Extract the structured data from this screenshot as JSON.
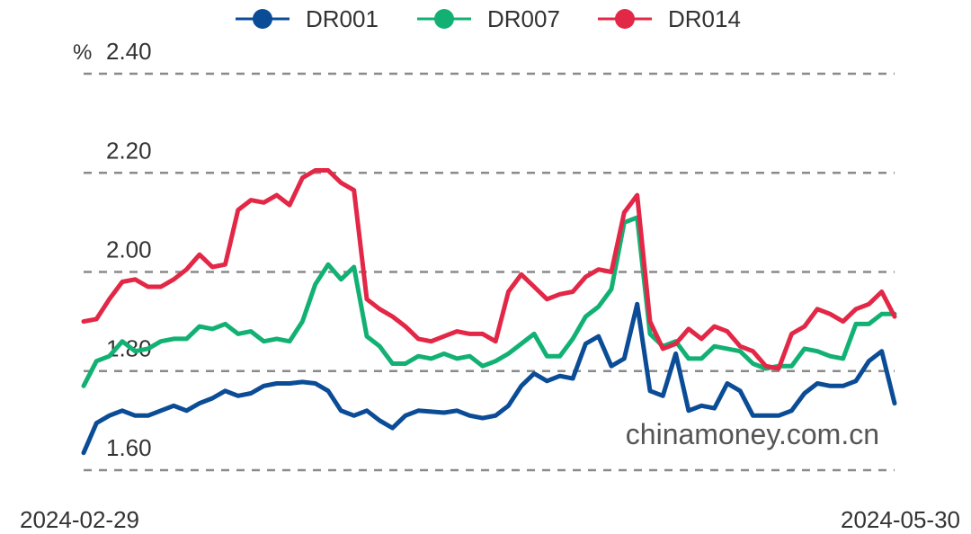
{
  "chart_data": {
    "type": "line",
    "unit": "%",
    "ylim": [
      1.56,
      2.44
    ],
    "y_ticks": [
      "1.60",
      "1.80",
      "2.00",
      "2.20",
      "2.40"
    ],
    "x_tick_labels": [
      "2024-02-29",
      "2024-05-30"
    ],
    "x_start": "2024-02-29",
    "x_end": "2024-05-30",
    "grid": true,
    "legend_position": "top-center",
    "watermark": "chinamoney.com.cn",
    "series": [
      {
        "name": "DR001",
        "color": "#0b4c97",
        "values": [
          1.635,
          1.695,
          1.71,
          1.72,
          1.71,
          1.71,
          1.72,
          1.73,
          1.72,
          1.735,
          1.745,
          1.76,
          1.75,
          1.755,
          1.77,
          1.775,
          1.775,
          1.778,
          1.775,
          1.76,
          1.72,
          1.71,
          1.72,
          1.7,
          1.685,
          1.71,
          1.72,
          1.718,
          1.716,
          1.72,
          1.71,
          1.705,
          1.71,
          1.73,
          1.77,
          1.795,
          1.78,
          1.79,
          1.785,
          1.855,
          1.87,
          1.81,
          1.825,
          1.935,
          1.76,
          1.75,
          1.835,
          1.72,
          1.73,
          1.725,
          1.775,
          1.76,
          1.71,
          1.71,
          1.71,
          1.72,
          1.755,
          1.775,
          1.77,
          1.77,
          1.78,
          1.82,
          1.84,
          1.735
        ]
      },
      {
        "name": "DR007",
        "color": "#12b173",
        "values": [
          1.77,
          1.82,
          1.83,
          1.86,
          1.84,
          1.845,
          1.86,
          1.865,
          1.865,
          1.89,
          1.885,
          1.895,
          1.875,
          1.88,
          1.86,
          1.865,
          1.86,
          1.9,
          1.975,
          2.015,
          1.985,
          2.01,
          1.87,
          1.85,
          1.815,
          1.815,
          1.83,
          1.825,
          1.835,
          1.825,
          1.83,
          1.81,
          1.82,
          1.835,
          1.855,
          1.875,
          1.83,
          1.83,
          1.865,
          1.91,
          1.93,
          1.965,
          2.1,
          2.11,
          1.875,
          1.85,
          1.86,
          1.825,
          1.825,
          1.85,
          1.845,
          1.84,
          1.815,
          1.805,
          1.81,
          1.81,
          1.845,
          1.84,
          1.83,
          1.825,
          1.895,
          1.895,
          1.915,
          1.915
        ]
      },
      {
        "name": "DR014",
        "color": "#e32746",
        "values": [
          1.9,
          1.905,
          1.945,
          1.98,
          1.985,
          1.97,
          1.97,
          1.985,
          2.005,
          2.035,
          2.01,
          2.015,
          2.125,
          2.145,
          2.14,
          2.155,
          2.135,
          2.19,
          2.205,
          2.205,
          2.18,
          2.165,
          1.945,
          1.925,
          1.91,
          1.89,
          1.865,
          1.86,
          1.87,
          1.88,
          1.875,
          1.875,
          1.86,
          1.96,
          1.995,
          1.97,
          1.945,
          1.955,
          1.96,
          1.99,
          2.005,
          2.0,
          2.12,
          2.155,
          1.9,
          1.845,
          1.855,
          1.885,
          1.865,
          1.89,
          1.88,
          1.85,
          1.84,
          1.81,
          1.805,
          1.875,
          1.89,
          1.925,
          1.915,
          1.9,
          1.925,
          1.935,
          1.96,
          1.91
        ]
      }
    ]
  }
}
